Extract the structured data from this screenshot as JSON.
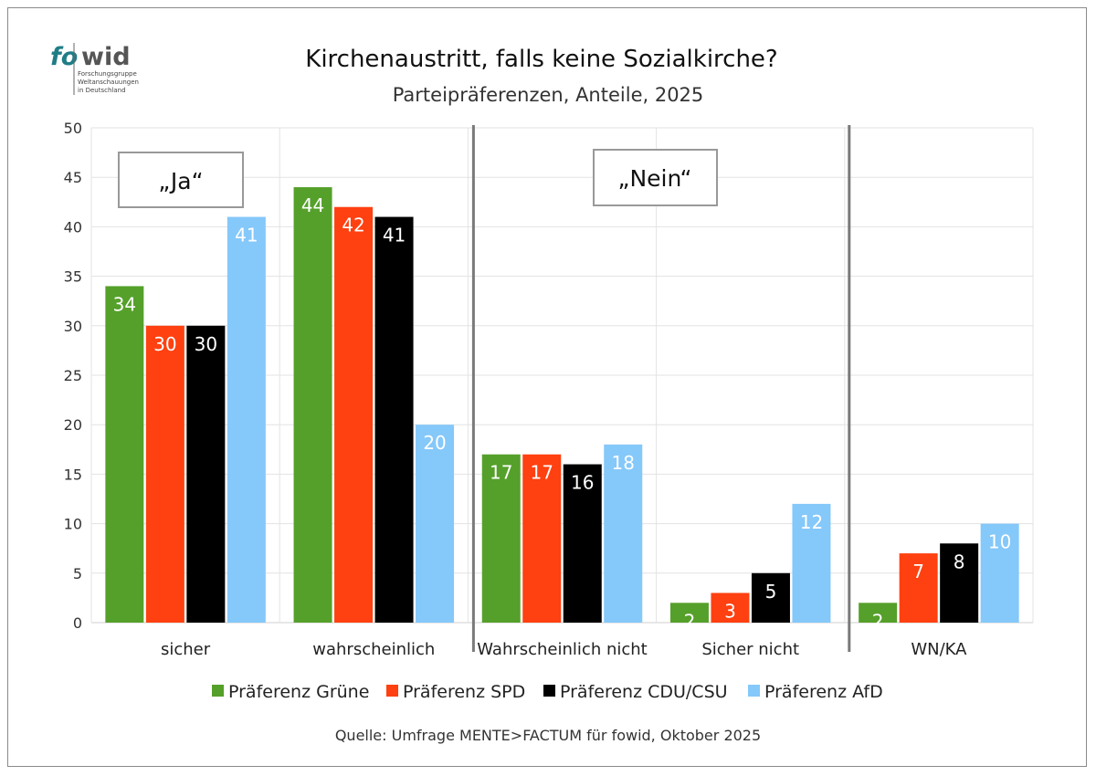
{
  "logo": {
    "fo": "fo",
    "wid": "wid",
    "lines": [
      "Forschungsgruppe",
      "Weltanschauungen",
      "in Deutschland"
    ]
  },
  "chart_data": {
    "type": "bar",
    "title": "Kirchenaustritt, falls keine Sozialkirche?",
    "subtitle": "Parteipräferenzen, Anteile, 2025",
    "categories": [
      "sicher",
      "wahrscheinlich",
      "Wahrscheinlich nicht",
      "Sicher nicht",
      "WN/KA"
    ],
    "series": [
      {
        "name": "Präferenz Grüne",
        "color": "#55a02a",
        "values": [
          34,
          44,
          17,
          2,
          2
        ]
      },
      {
        "name": "Präferenz SPD",
        "color": "#ff4010",
        "values": [
          30,
          42,
          17,
          3,
          7
        ]
      },
      {
        "name": "Präferenz CDU/CSU",
        "color": "#000000",
        "values": [
          30,
          41,
          16,
          5,
          8
        ]
      },
      {
        "name": "Präferenz AfD",
        "color": "#85c8fa",
        "values": [
          41,
          20,
          18,
          12,
          10
        ]
      }
    ],
    "ylim": [
      0,
      50
    ],
    "yticks": [
      0,
      5,
      10,
      15,
      20,
      25,
      30,
      35,
      40,
      45,
      50
    ],
    "grid": true,
    "legend": "bottom",
    "annotations": [
      "„Ja“",
      "„Nein“"
    ],
    "source": "Quelle: Umfrage MENTE>FACTUM für fowid, Oktober 2025"
  }
}
